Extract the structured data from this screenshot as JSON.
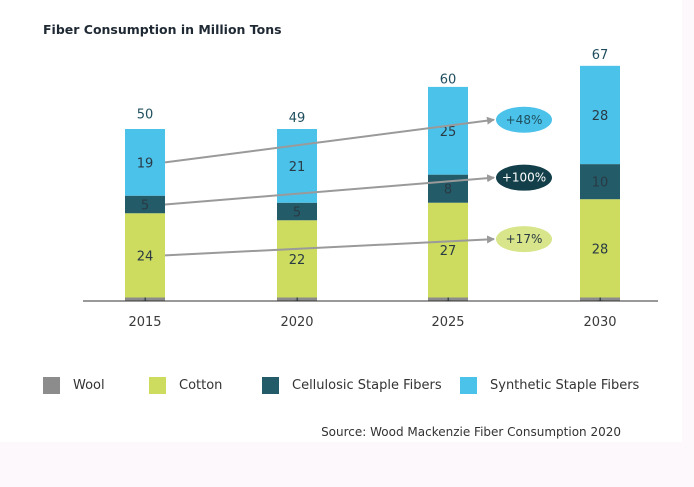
{
  "chart_data": {
    "type": "bar",
    "stacked": true,
    "title": "Fiber Consumption in Million Tons",
    "categories": [
      "2015",
      "2020",
      "2025",
      "2030"
    ],
    "series": [
      {
        "name": "Wool",
        "values": [
          1,
          1,
          1,
          1
        ],
        "color": "#8c8c8c"
      },
      {
        "name": "Cotton",
        "values": [
          24,
          22,
          27,
          28
        ],
        "color": "#cddc5e"
      },
      {
        "name": "Cellulosic Staple Fibers",
        "values": [
          5,
          5,
          8,
          10
        ],
        "color": "#235b68"
      },
      {
        "name": "Synthetic Staple Fibers",
        "values": [
          19,
          21,
          25,
          28
        ],
        "color": "#4bc2ea"
      }
    ],
    "totals": [
      50,
      49,
      60,
      67
    ],
    "ylim": [
      0,
      70
    ],
    "grid": false,
    "legend_position": "bottom",
    "annotations": [
      {
        "text": "+48%",
        "series": "Synthetic Staple Fibers",
        "color": "#4bc2ea",
        "text_color": "#1f4f5f"
      },
      {
        "text": "+100%",
        "series": "Cellulosic Staple Fibers",
        "color": "#123f49",
        "text_color": "#ffffff"
      },
      {
        "text": "+17%",
        "series": "Cotton",
        "color": "#d8e58a",
        "text_color": "#2a3a44"
      }
    ],
    "source": "Source: Wood Mackenzie Fiber Consumption 2020"
  }
}
